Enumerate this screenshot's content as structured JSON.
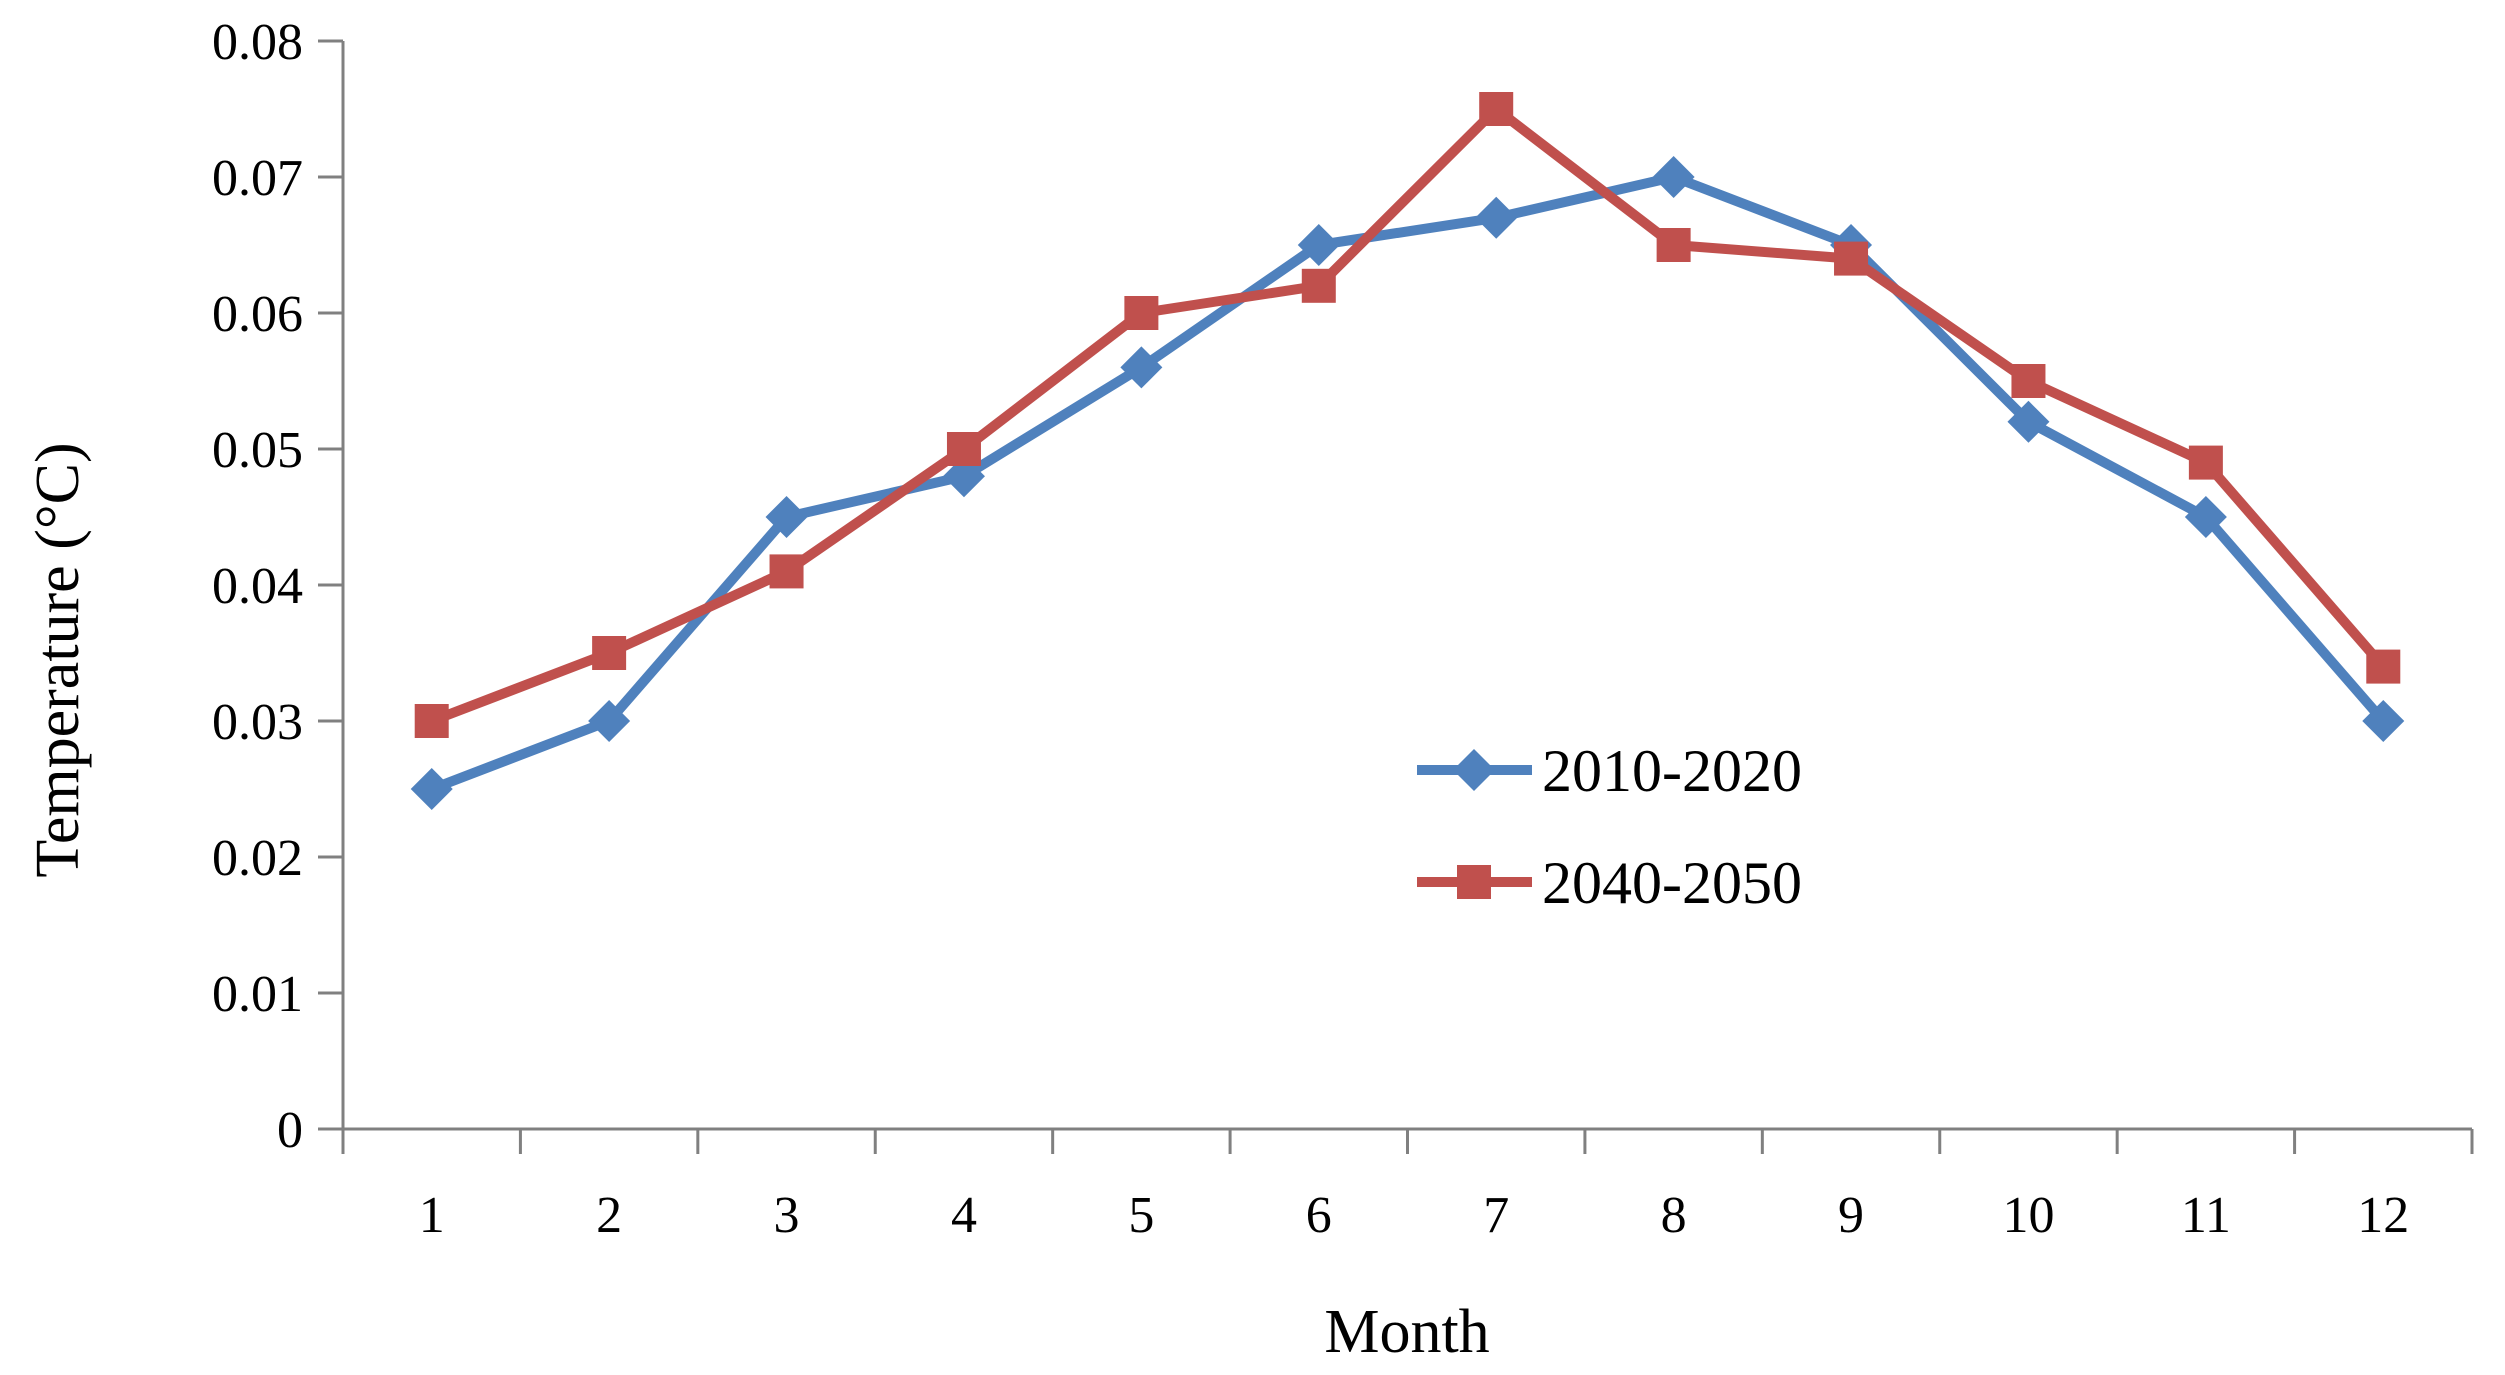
{
  "chart_data": {
    "type": "line",
    "title": "",
    "xlabel": "Month",
    "ylabel": "Temperature (°C)",
    "x": [
      1,
      2,
      3,
      4,
      5,
      6,
      7,
      8,
      9,
      10,
      11,
      12
    ],
    "x_tick_labels": [
      "1",
      "2",
      "3",
      "4",
      "5",
      "6",
      "7",
      "8",
      "9",
      "10",
      "11",
      "12"
    ],
    "y_ticks": [
      0,
      0.01,
      0.02,
      0.03,
      0.04,
      0.05,
      0.06,
      0.07,
      0.08
    ],
    "y_tick_labels": [
      "0",
      "0.01",
      "0.02",
      "0.03",
      "0.04",
      "0.05",
      "0.06",
      "0.07",
      "0.08"
    ],
    "ylim": [
      0,
      0.08
    ],
    "grid": false,
    "legend_position": "inside-right",
    "series": [
      {
        "name": "2010-2020",
        "color": "#4F81BD",
        "marker": "diamond",
        "values": [
          0.025,
          0.03,
          0.045,
          0.048,
          0.056,
          0.065,
          0.067,
          0.07,
          0.065,
          0.052,
          0.045,
          0.03
        ]
      },
      {
        "name": "2040-2050",
        "color": "#C0504D",
        "marker": "square",
        "values": [
          0.03,
          0.035,
          0.041,
          0.05,
          0.06,
          0.062,
          0.075,
          0.065,
          0.064,
          0.055,
          0.049,
          0.034
        ]
      }
    ],
    "colors": {
      "axis": "#808080",
      "text": "#000000",
      "background": "#FFFFFF"
    }
  }
}
